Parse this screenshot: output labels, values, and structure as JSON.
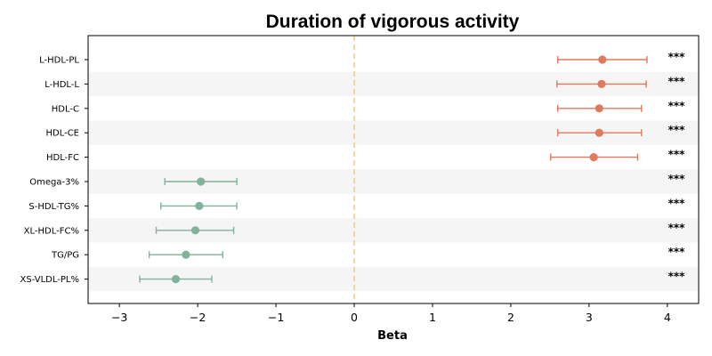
{
  "chart_data": {
    "type": "forest",
    "title": "Duration of vigorous activity",
    "xlabel": "Beta",
    "ylabel": "",
    "xlim": [
      -3.4,
      4.4
    ],
    "xticks": [
      -3,
      -2,
      -1,
      0,
      1,
      2,
      3,
      4
    ],
    "xtick_labels": [
      "−3",
      "−2",
      "−1",
      "0",
      "1",
      "2",
      "3",
      "4"
    ],
    "reference_line": 0,
    "grid": false,
    "alternating_row_bands": true,
    "colors": {
      "positive": "#e07a5f",
      "negative": "#81b29a",
      "reference_line": "#f2c88a",
      "band": "#f5f5f5"
    },
    "rows": [
      {
        "label": "L-HDL-PL",
        "beta": 3.17,
        "lower": 2.6,
        "upper": 3.74,
        "sig": "***"
      },
      {
        "label": "L-HDL-L",
        "beta": 3.16,
        "lower": 2.59,
        "upper": 3.73,
        "sig": "***"
      },
      {
        "label": "HDL-C",
        "beta": 3.13,
        "lower": 2.6,
        "upper": 3.67,
        "sig": "***"
      },
      {
        "label": "HDL-CE",
        "beta": 3.13,
        "lower": 2.6,
        "upper": 3.67,
        "sig": "***"
      },
      {
        "label": "HDL-FC",
        "beta": 3.06,
        "lower": 2.51,
        "upper": 3.62,
        "sig": "***"
      },
      {
        "label": "Omega-3%",
        "beta": -1.96,
        "lower": -2.42,
        "upper": -1.5,
        "sig": "***"
      },
      {
        "label": "S-HDL-TG%",
        "beta": -1.98,
        "lower": -2.47,
        "upper": -1.5,
        "sig": "***"
      },
      {
        "label": "XL-HDL-FC%",
        "beta": -2.03,
        "lower": -2.53,
        "upper": -1.54,
        "sig": "***"
      },
      {
        "label": "TG/PG",
        "beta": -2.15,
        "lower": -2.62,
        "upper": -1.68,
        "sig": "***"
      },
      {
        "label": "XS-VLDL-PL%",
        "beta": -2.28,
        "lower": -2.74,
        "upper": -1.82,
        "sig": "***"
      }
    ]
  }
}
